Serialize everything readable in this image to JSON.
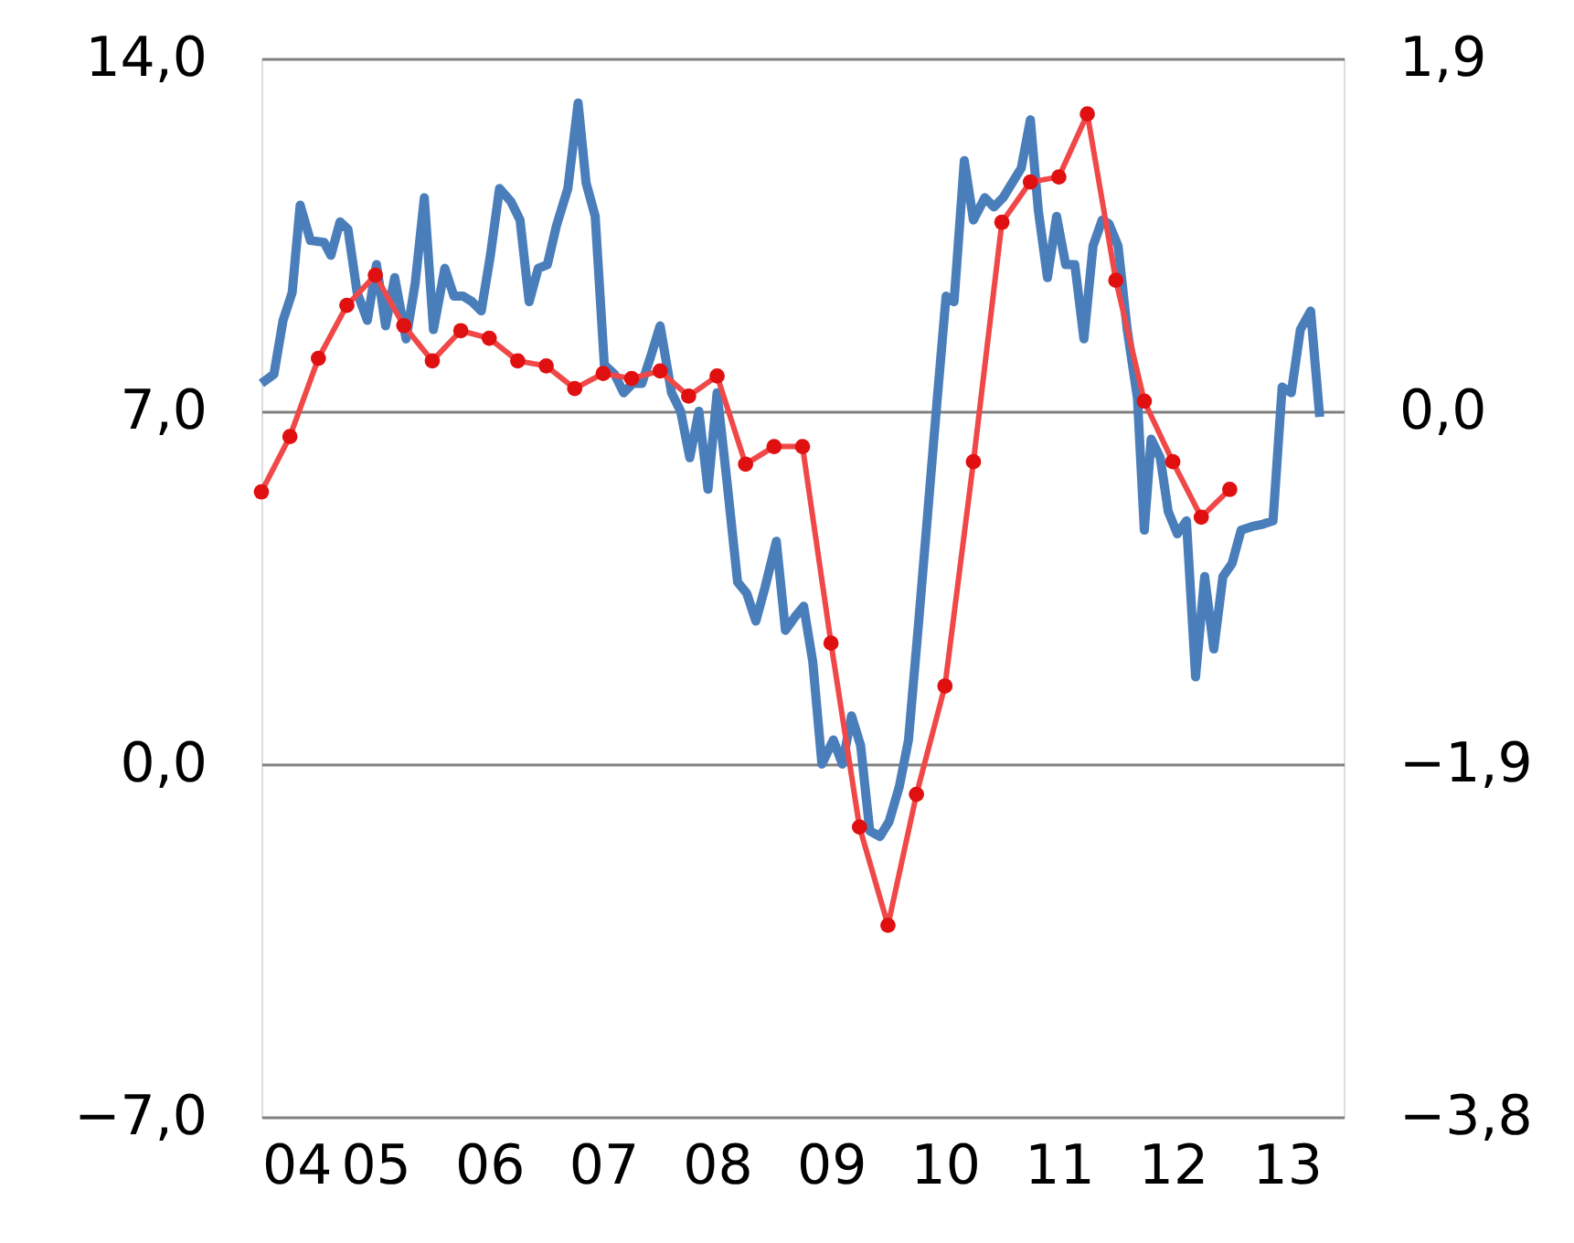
{
  "chart_data": {
    "type": "line",
    "xlim": [
      2004,
      2013.5
    ],
    "xticks": [
      {
        "value": 2004,
        "label": "04"
      },
      {
        "value": 2005,
        "label": "05"
      },
      {
        "value": 2006,
        "label": "06"
      },
      {
        "value": 2007,
        "label": "07"
      },
      {
        "value": 2008,
        "label": "08"
      },
      {
        "value": 2009,
        "label": "09"
      },
      {
        "value": 2010,
        "label": "10"
      },
      {
        "value": 2011,
        "label": "11"
      },
      {
        "value": 2012,
        "label": "12"
      },
      {
        "value": 2013,
        "label": "13"
      }
    ],
    "ylim": [
      -7,
      14
    ],
    "yticks": [
      {
        "value": -7,
        "label": "−7,0"
      },
      {
        "value": 0,
        "label": "0,0"
      },
      {
        "value": 7,
        "label": "7,0"
      },
      {
        "value": 14,
        "label": "14,0"
      }
    ],
    "y2lim": [
      -3.8,
      1.9
    ],
    "y2ticks": [
      {
        "value": -3.8,
        "label": "−3,8"
      },
      {
        "value": -1.9,
        "label": "−1,9"
      },
      {
        "value": 0,
        "label": "0,0"
      },
      {
        "value": 1.9,
        "label": "1,9"
      }
    ],
    "grid": "y",
    "series": [
      {
        "color": "#f04848",
        "marker": "circle",
        "line_style": "solid",
        "x": [
          2004.0,
          2004.25,
          2004.5,
          2004.75,
          2005.0,
          2005.25,
          2005.5,
          2005.75,
          2006.0,
          2006.25,
          2006.5,
          2006.75,
          2007.0,
          2007.25,
          2007.5,
          2007.75,
          2008.0,
          2008.25,
          2008.5,
          2008.75,
          2009.0,
          2009.25,
          2009.5,
          2009.75,
          2010.0,
          2010.25,
          2010.5,
          2010.75,
          2011.0,
          2011.25,
          2011.5,
          2011.75,
          2012.0,
          2012.25,
          2012.5
        ],
        "values": [
          5.4,
          6.5,
          8.05,
          9.1,
          9.7,
          8.7,
          8.0,
          8.6,
          8.45,
          8.0,
          7.9,
          7.45,
          7.75,
          7.65,
          7.8,
          7.3,
          7.7,
          5.95,
          6.3,
          6.3,
          2.4,
          -1.25,
          -3.2,
          -0.6,
          1.55,
          6.0,
          10.75,
          11.55,
          11.65,
          12.9,
          9.6,
          7.2,
          6.0,
          4.9,
          5.45
        ]
      },
      {
        "color": "#4a7ebb",
        "marker": "none",
        "line_style": "solid",
        "axis": "y2",
        "x": [
          2004.0,
          2004.11,
          2004.19,
          2004.27,
          2004.34,
          2004.43,
          2004.55,
          2004.61,
          2004.69,
          2004.76,
          2004.84,
          2004.93,
          2005.01,
          2005.09,
          2005.17,
          2005.27,
          2005.35,
          2005.43,
          2005.51,
          2005.61,
          2005.69,
          2005.77,
          2005.85,
          2005.93,
          2006.01,
          2006.09,
          2006.19,
          2006.27,
          2006.35,
          2006.43,
          2006.51,
          2006.59,
          2006.69,
          2006.78,
          2006.85,
          2006.93,
          2007.01,
          2007.1,
          2007.18,
          2007.26,
          2007.34,
          2007.42,
          2007.5,
          2007.6,
          2007.68,
          2007.76,
          2007.84,
          2007.92,
          2008.0,
          2008.08,
          2008.18,
          2008.26,
          2008.34,
          2008.42,
          2008.52,
          2008.6,
          2008.68,
          2008.76,
          2008.84,
          2008.92,
          2009.02,
          2009.1,
          2009.18,
          2009.26,
          2009.34,
          2009.43,
          2009.51,
          2009.6,
          2009.68,
          2009.77,
          2009.85,
          2009.93,
          2010.01,
          2010.08,
          2010.17,
          2010.25,
          2010.35,
          2010.43,
          2010.51,
          2010.59,
          2010.67,
          2010.75,
          2010.82,
          2010.9,
          2010.98,
          2011.06,
          2011.14,
          2011.22,
          2011.3,
          2011.38,
          2011.44,
          2011.52,
          2011.6,
          2011.69,
          2011.75,
          2011.81,
          2011.89,
          2011.96,
          2012.04,
          2012.12,
          2012.2,
          2012.28,
          2012.36,
          2012.44,
          2012.52,
          2012.6,
          2012.7,
          2012.78,
          2012.88,
          2012.96,
          2013.04,
          2013.12,
          2013.21,
          2013.29
        ],
        "values": [
          0.15,
          0.2,
          0.49,
          0.64,
          1.11,
          0.92,
          0.91,
          0.84,
          1.02,
          0.98,
          0.64,
          0.49,
          0.79,
          0.46,
          0.72,
          0.39,
          0.69,
          1.15,
          0.44,
          0.77,
          0.62,
          0.62,
          0.59,
          0.54,
          0.84,
          1.2,
          1.13,
          1.03,
          0.59,
          0.77,
          0.79,
          1.0,
          1.2,
          1.66,
          1.23,
          1.05,
          0.25,
          0.2,
          0.1,
          0.15,
          0.15,
          0.3,
          0.46,
          0.1,
          0.0,
          -0.25,
          0.0,
          -0.42,
          0.1,
          -0.34,
          -0.92,
          -0.98,
          -1.13,
          -0.95,
          -0.7,
          -1.18,
          -1.11,
          -1.05,
          -1.35,
          -1.9,
          -1.77,
          -1.9,
          -1.64,
          -1.8,
          -2.26,
          -2.29,
          -2.21,
          -2.02,
          -1.77,
          -1.13,
          -0.54,
          0.05,
          0.62,
          0.59,
          1.35,
          1.03,
          1.15,
          1.1,
          1.15,
          1.23,
          1.31,
          1.57,
          1.08,
          0.72,
          1.05,
          0.79,
          0.79,
          0.39,
          0.89,
          1.03,
          1.01,
          0.89,
          0.44,
          0.07,
          -0.64,
          -0.15,
          -0.25,
          -0.54,
          -0.66,
          -0.59,
          -1.43,
          -0.89,
          -1.28,
          -0.89,
          -0.82,
          -0.64,
          -0.62,
          -0.61,
          -0.59,
          0.13,
          0.1,
          0.44,
          0.54,
          -0.03
        ]
      }
    ]
  }
}
